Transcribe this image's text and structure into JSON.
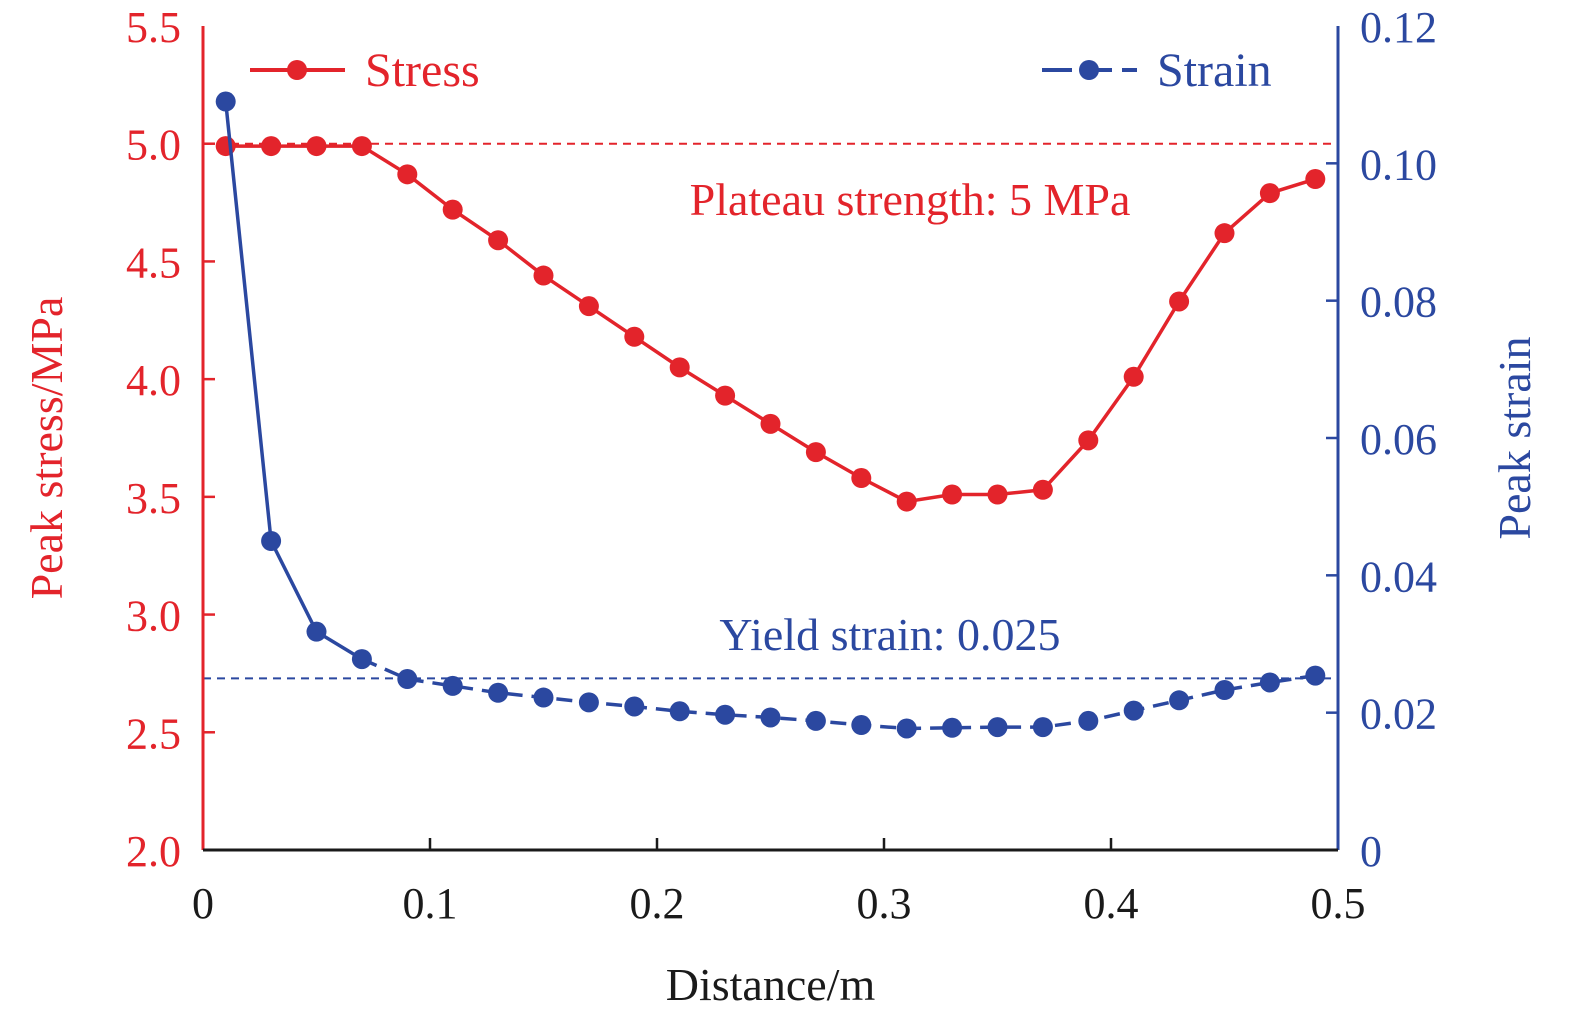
{
  "chart_data": {
    "type": "line",
    "xlabel": "Distance/m",
    "ylabel_left": "Peak stress/MPa",
    "ylabel_right": "Peak strain",
    "xlim": [
      0,
      0.5
    ],
    "ylim_left": [
      2.0,
      5.5
    ],
    "ylim_right": [
      0,
      0.12
    ],
    "x_ticks": [
      "0",
      "0.1",
      "0.2",
      "0.3",
      "0.4",
      "0.5"
    ],
    "y_left_ticks": [
      "2.0",
      "2.5",
      "3.0",
      "3.5",
      "4.0",
      "4.5",
      "5.0",
      "5.5"
    ],
    "y_right_ticks": [
      "0",
      "0.02",
      "0.04",
      "0.06",
      "0.08",
      "0.10",
      "0.12"
    ],
    "grid": false,
    "legend_placement": "top",
    "x": [
      0.01,
      0.03,
      0.05,
      0.07,
      0.09,
      0.11,
      0.13,
      0.15,
      0.17,
      0.19,
      0.21,
      0.23,
      0.25,
      0.27,
      0.29,
      0.31,
      0.33,
      0.35,
      0.37,
      0.39,
      0.41,
      0.43,
      0.45,
      0.47,
      0.49
    ],
    "series": [
      {
        "name": "Stress",
        "axis": "left",
        "color": "#e3242b",
        "line_style": "solid",
        "values": [
          4.99,
          4.99,
          4.99,
          4.99,
          4.87,
          4.72,
          4.59,
          4.44,
          4.31,
          4.18,
          4.05,
          3.93,
          3.81,
          3.69,
          3.58,
          3.48,
          3.51,
          3.51,
          3.53,
          3.74,
          4.01,
          4.33,
          4.62,
          4.79,
          4.85
        ]
      },
      {
        "name": "Strain",
        "axis": "right",
        "color": "#2b48a0",
        "line_style": "solid-then-dashed",
        "values": [
          0.109,
          0.045,
          0.0318,
          0.0278,
          0.0249,
          0.0239,
          0.0229,
          0.0222,
          0.0215,
          0.0209,
          0.0202,
          0.0197,
          0.0193,
          0.0188,
          0.0182,
          0.0177,
          0.0178,
          0.0179,
          0.0179,
          0.0188,
          0.0203,
          0.0218,
          0.0233,
          0.0244,
          0.0254
        ]
      }
    ],
    "reference_lines": [
      {
        "axis": "left",
        "value": 5.0,
        "label": "Plateau strength: 5 MPa",
        "color": "#e3242b"
      },
      {
        "axis": "right",
        "value": 0.025,
        "label": "Yield strain: 0.025",
        "color": "#2b48a0"
      }
    ]
  }
}
